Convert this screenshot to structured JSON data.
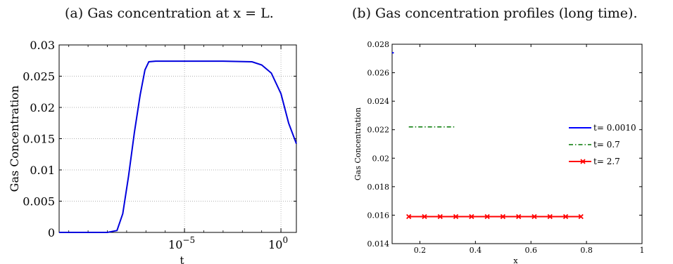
{
  "captions": {
    "a": "(a) Gas concentration at x = L.",
    "b": "(b) Gas concentration profiles (long time)."
  },
  "chart_data": [
    {
      "type": "line",
      "title": "",
      "xlabel": "t",
      "ylabel": "Gas Concentration",
      "xscale": "log",
      "xlim_log10": [
        -11.5,
        0.8
      ],
      "ylim": [
        0,
        0.03
      ],
      "yticks": [
        "0",
        "0.005",
        "0.01",
        "0.015",
        "0.02",
        "0.025",
        "0.03"
      ],
      "xticks": [
        {
          "base": "10",
          "exp": "−5",
          "log10": -5
        },
        {
          "base": "10",
          "exp": "0",
          "log10": 0
        }
      ],
      "grid": true,
      "series": [
        {
          "color": "#0000dd",
          "points": [
            [
              -11.5,
              0
            ],
            [
              -9.0,
              0
            ],
            [
              -8.5,
              0.0003
            ],
            [
              -8.2,
              0.003
            ],
            [
              -7.9,
              0.009
            ],
            [
              -7.6,
              0.016
            ],
            [
              -7.3,
              0.022
            ],
            [
              -7.05,
              0.026
            ],
            [
              -6.85,
              0.0273
            ],
            [
              -6.5,
              0.0274
            ],
            [
              -3.0,
              0.0274
            ],
            [
              -1.5,
              0.0273
            ],
            [
              -1.0,
              0.0268
            ],
            [
              -0.5,
              0.0255
            ],
            [
              0.0,
              0.0222
            ],
            [
              0.4,
              0.0175
            ],
            [
              0.8,
              0.0142
            ]
          ]
        }
      ]
    },
    {
      "type": "line",
      "title": "",
      "xlabel": "x",
      "ylabel": "Gas Concentration",
      "xlim": [
        0.1,
        1
      ],
      "ylim": [
        0.014,
        0.028
      ],
      "xticks": [
        "0.2",
        "0.4",
        "0.6",
        "0.8",
        "1"
      ],
      "yticks": [
        "0.014",
        "0.016",
        "0.018",
        "0.02",
        "0.022",
        "0.024",
        "0.026",
        "0.028"
      ],
      "grid": false,
      "legend": "right",
      "series": [
        {
          "name": "t= 0.0010",
          "color": "#0000ff",
          "style": "solid",
          "points": [
            [
              0.1,
              0.0274
            ],
            [
              0.106,
              0.0274
            ]
          ]
        },
        {
          "name": "t= 0.7",
          "color": "#007700",
          "style": "dashdot",
          "points": [
            [
              0.16,
              0.0222
            ],
            [
              0.33,
              0.0222
            ]
          ]
        },
        {
          "name": "t= 2.7",
          "color": "#ff0000",
          "style": "solid",
          "marker": "x",
          "points": [
            [
              0.16,
              0.0159
            ],
            [
              0.2165,
              0.0159
            ],
            [
              0.273,
              0.0159
            ],
            [
              0.3295,
              0.0159
            ],
            [
              0.386,
              0.0159
            ],
            [
              0.4425,
              0.0159
            ],
            [
              0.499,
              0.0159
            ],
            [
              0.5555,
              0.0159
            ],
            [
              0.612,
              0.0159
            ],
            [
              0.6685,
              0.0159
            ],
            [
              0.725,
              0.0159
            ],
            [
              0.78,
              0.0159
            ]
          ]
        }
      ]
    }
  ]
}
